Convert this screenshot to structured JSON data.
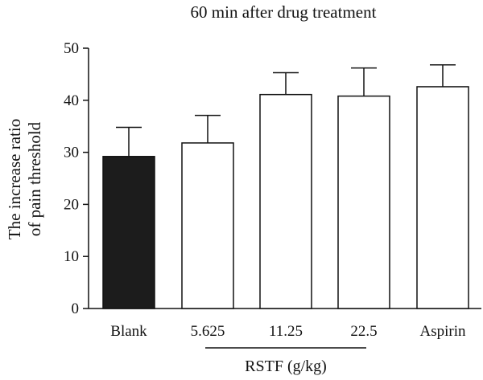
{
  "chart_data": {
    "type": "bar",
    "title": "60 min after drug treatment",
    "ylabel_lines": [
      "The increase ratio",
      "of pain threshold"
    ],
    "xlabel": "",
    "categories": [
      "Blank",
      "5.625",
      "11.25",
      "22.5",
      "Aspirin"
    ],
    "values": [
      29.2,
      31.8,
      41.1,
      40.8,
      42.6
    ],
    "error_plus": [
      5.6,
      5.3,
      4.2,
      5.4,
      4.2
    ],
    "bar_fill": [
      "#1c1c1c",
      "#ffffff",
      "#ffffff",
      "#ffffff",
      "#ffffff"
    ],
    "ylim": [
      0,
      50
    ],
    "yticks": [
      0,
      10,
      20,
      30,
      40,
      50
    ],
    "group_bracket": {
      "label": "RSTF (g/kg)",
      "from_category": 1,
      "to_category": 3
    },
    "grid": false,
    "legend": "none"
  }
}
